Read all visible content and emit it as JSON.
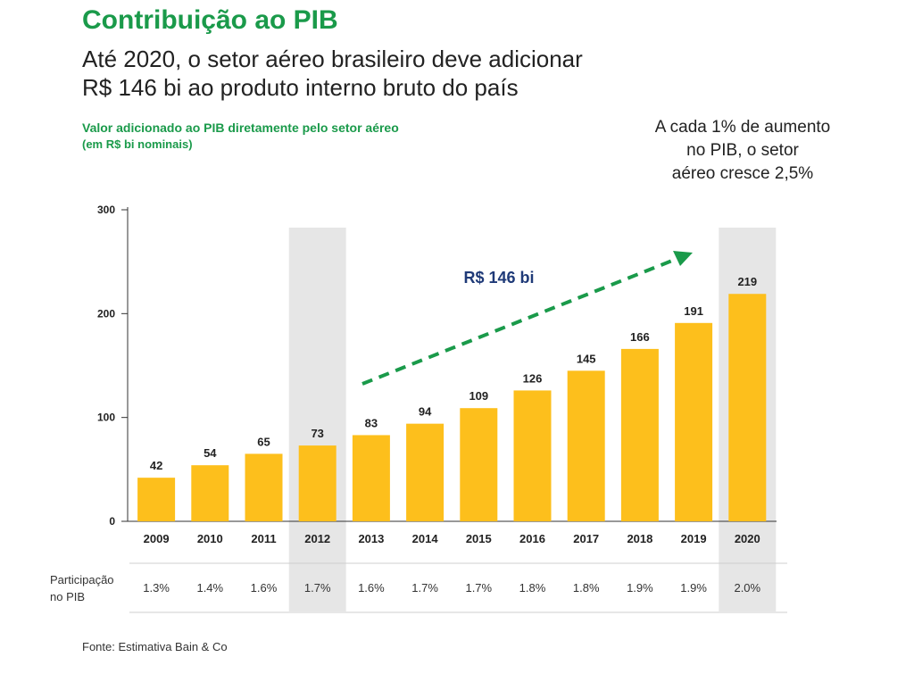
{
  "header": {
    "title": "Contribuição ao PIB",
    "subtitle_line1": "Até 2020, o setor aéreo brasileiro deve adicionar",
    "subtitle_line2": "R$ 146 bi ao produto interno bruto do país"
  },
  "note": {
    "line1": "A cada 1% de aumento",
    "line2": "no PIB, o setor",
    "line3": "aéreo cresce 2,5%"
  },
  "share_row": {
    "label_line1": "Participação",
    "label_line2": "no PIB",
    "values": [
      "1.3%",
      "1.4%",
      "1.6%",
      "1.7%",
      "1.6%",
      "1.7%",
      "1.7%",
      "1.8%",
      "1.8%",
      "1.9%",
      "1.9%",
      "2.0%"
    ]
  },
  "source": "Fonte: Estimativa Bain & Co",
  "colors": {
    "accent_green": "#1a9a4a",
    "bar_yellow": "#fdbf1c",
    "highlight_gray": "#e6e6e6",
    "arrow_text_blue": "#1f3a78"
  },
  "chart_data": {
    "type": "bar",
    "title": "Valor adicionado ao PIB diretamente pelo setor aéreo",
    "subtitle": "(em R$ bi nominais)",
    "categories": [
      "2009",
      "2010",
      "2011",
      "2012",
      "2013",
      "2014",
      "2015",
      "2016",
      "2017",
      "2018",
      "2019",
      "2020"
    ],
    "values": [
      42,
      54,
      65,
      73,
      83,
      94,
      109,
      126,
      145,
      166,
      191,
      219
    ],
    "data_labels": [
      "42",
      "54",
      "65",
      "73",
      "83",
      "94",
      "109",
      "126",
      "145",
      "166",
      "191",
      "219"
    ],
    "ylim": [
      0,
      300
    ],
    "yticks": [
      0,
      100,
      200,
      300
    ],
    "ytick_labels": [
      "0",
      "100",
      "200",
      "300"
    ],
    "highlighted_categories": [
      "2012",
      "2020"
    ],
    "grid": false,
    "annotation": {
      "text": "R$ 146 bi",
      "arrow_from": "2013",
      "arrow_to": "2020"
    }
  }
}
